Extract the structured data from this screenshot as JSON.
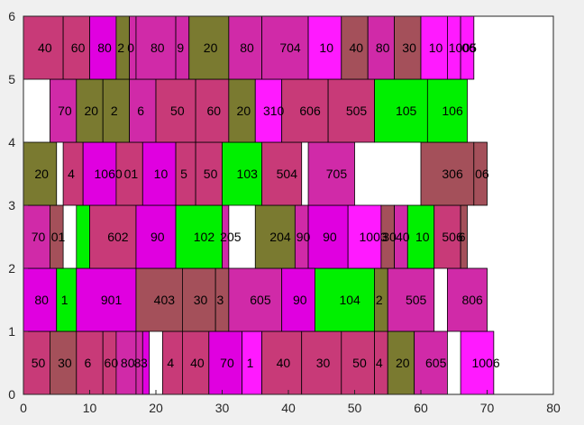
{
  "chart_data": {
    "type": "bar",
    "subtype": "packing-layout",
    "title": "",
    "xlabel": "",
    "ylabel": "",
    "xlim": [
      0,
      80
    ],
    "ylim": [
      0,
      6
    ],
    "xticks": [
      "0",
      "10",
      "20",
      "30",
      "40",
      "50",
      "60",
      "70",
      "80"
    ],
    "yticks": [
      "0",
      "1",
      "2",
      "3",
      "4",
      "5",
      "6"
    ],
    "grid": false,
    "plot_background": "#ffffff",
    "colors": {
      "magenta": "#e000e0",
      "violet": "#ff1aff",
      "orchid": "#d02aa8",
      "rose": "#c83a78",
      "brown": "#a4505a",
      "olive": "#7a7a30",
      "green": "#00f000"
    },
    "boxes": [
      {
        "label": "50",
        "x0": 0,
        "x1": 4,
        "y0": 0,
        "y1": 1,
        "color": "rose"
      },
      {
        "label": "30",
        "x0": 4,
        "x1": 8,
        "y0": 0,
        "y1": 1,
        "color": "brown"
      },
      {
        "label": "6",
        "x0": 8,
        "x1": 12,
        "y0": 0,
        "y1": 1,
        "color": "rose"
      },
      {
        "label": "60",
        "x0": 12,
        "x1": 14,
        "y0": 0,
        "y1": 1,
        "color": "rose"
      },
      {
        "label": "80",
        "x0": 14,
        "x1": 17,
        "y0": 0,
        "y1": 1,
        "color": "orchid"
      },
      {
        "label": "8",
        "x0": 17,
        "x1": 18,
        "y0": 0,
        "y1": 1,
        "color": "orchid"
      },
      {
        "label": "3",
        "x0": 18,
        "x1": 19,
        "y0": 0,
        "y1": 1,
        "color": "magenta"
      },
      {
        "label": "4",
        "x0": 21,
        "x1": 24,
        "y0": 0,
        "y1": 1,
        "color": "rose"
      },
      {
        "label": "40",
        "x0": 24,
        "x1": 28,
        "y0": 0,
        "y1": 1,
        "color": "rose"
      },
      {
        "label": "70",
        "x0": 28,
        "x1": 33,
        "y0": 0,
        "y1": 1,
        "color": "magenta"
      },
      {
        "label": "1",
        "x0": 33,
        "x1": 36,
        "y0": 0,
        "y1": 1,
        "color": "violet"
      },
      {
        "label": "40",
        "x0": 36,
        "x1": 42,
        "y0": 0,
        "y1": 1,
        "color": "rose"
      },
      {
        "label": "30",
        "x0": 42,
        "x1": 48,
        "y0": 0,
        "y1": 1,
        "color": "rose"
      },
      {
        "label": "50",
        "x0": 48,
        "x1": 53,
        "y0": 0,
        "y1": 1,
        "color": "rose"
      },
      {
        "label": "4",
        "x0": 53,
        "x1": 55,
        "y0": 0,
        "y1": 1,
        "color": "rose"
      },
      {
        "label": "20",
        "x0": 55,
        "x1": 59,
        "y0": 0,
        "y1": 1,
        "color": "olive"
      },
      {
        "label": "605",
        "x0": 59,
        "x1": 64,
        "y0": 0,
        "y1": 1,
        "color": "orchid"
      },
      {
        "label": "1006",
        "x0": 66,
        "x1": 71,
        "y0": 0,
        "y1": 1,
        "color": "violet"
      },
      {
        "label": "80",
        "x0": 0,
        "x1": 5,
        "y0": 1,
        "y1": 2,
        "color": "magenta"
      },
      {
        "label": "1",
        "x0": 5,
        "x1": 8,
        "y0": 1,
        "y1": 2,
        "color": "green"
      },
      {
        "label": "901",
        "x0": 8,
        "x1": 17,
        "y0": 1,
        "y1": 2,
        "color": "magenta"
      },
      {
        "label": "403",
        "x0": 17,
        "x1": 24,
        "y0": 1,
        "y1": 2,
        "color": "brown"
      },
      {
        "label": "30",
        "x0": 24,
        "x1": 29,
        "y0": 1,
        "y1": 2,
        "color": "brown"
      },
      {
        "label": "3",
        "x0": 29,
        "x1": 31,
        "y0": 1,
        "y1": 2,
        "color": "brown"
      },
      {
        "label": "605",
        "x0": 31,
        "x1": 39,
        "y0": 1,
        "y1": 2,
        "color": "orchid"
      },
      {
        "label": "90",
        "x0": 39,
        "x1": 44,
        "y0": 1,
        "y1": 2,
        "color": "magenta"
      },
      {
        "label": "104",
        "x0": 44,
        "x1": 53,
        "y0": 1,
        "y1": 2,
        "color": "green"
      },
      {
        "label": "2",
        "x0": 53,
        "x1": 55,
        "y0": 1,
        "y1": 2,
        "color": "olive"
      },
      {
        "label": "505",
        "x0": 55,
        "x1": 62,
        "y0": 1,
        "y1": 2,
        "color": "orchid"
      },
      {
        "label": "806",
        "x0": 64,
        "x1": 70,
        "y0": 1,
        "y1": 2,
        "color": "orchid"
      },
      {
        "label": "70",
        "x0": 0,
        "x1": 4,
        "y0": 2,
        "y1": 3,
        "color": "orchid"
      },
      {
        "label": "01",
        "x0": 4,
        "x1": 6,
        "y0": 2,
        "y1": 3,
        "color": "brown"
      },
      {
        "label": "",
        "x0": 8,
        "x1": 10,
        "y0": 2,
        "y1": 3,
        "color": "green"
      },
      {
        "label": "602",
        "x0": 10,
        "x1": 17,
        "y0": 2,
        "y1": 3,
        "color": "rose"
      },
      {
        "label": "90",
        "x0": 17,
        "x1": 23,
        "y0": 2,
        "y1": 3,
        "color": "magenta"
      },
      {
        "label": "102",
        "x0": 23,
        "x1": 30,
        "y0": 2,
        "y1": 3,
        "color": "green"
      },
      {
        "label": "205",
        "x0": 30,
        "x1": 31,
        "y0": 2,
        "y1": 3,
        "color": "orchid"
      },
      {
        "label": "204",
        "x0": 35,
        "x1": 41,
        "y0": 2,
        "y1": 3,
        "color": "olive"
      },
      {
        "label": "90",
        "x0": 41,
        "x1": 43,
        "y0": 2,
        "y1": 3,
        "color": "orchid"
      },
      {
        "label": "90",
        "x0": 43,
        "x1": 49,
        "y0": 2,
        "y1": 3,
        "color": "magenta"
      },
      {
        "label": "1003",
        "x0": 49,
        "x1": 54,
        "y0": 2,
        "y1": 3,
        "color": "violet"
      },
      {
        "label": "30",
        "x0": 54,
        "x1": 56,
        "y0": 2,
        "y1": 3,
        "color": "brown"
      },
      {
        "label": "40",
        "x0": 56,
        "x1": 58,
        "y0": 2,
        "y1": 3,
        "color": "orchid"
      },
      {
        "label": "10",
        "x0": 58,
        "x1": 62,
        "y0": 2,
        "y1": 3,
        "color": "green"
      },
      {
        "label": "506",
        "x0": 62,
        "x1": 66,
        "y0": 2,
        "y1": 3,
        "color": "rose"
      },
      {
        "label": "6",
        "x0": 66,
        "x1": 67,
        "y0": 2,
        "y1": 3,
        "color": "brown"
      },
      {
        "label": "20",
        "x0": 0,
        "x1": 5,
        "y0": 3,
        "y1": 4,
        "color": "olive"
      },
      {
        "label": "4",
        "x0": 6,
        "x1": 9,
        "y0": 3,
        "y1": 4,
        "color": "rose"
      },
      {
        "label": "1060",
        "x0": 9,
        "x1": 14,
        "y0": 3,
        "y1": 4,
        "color": "magenta"
      },
      {
        "label": "01",
        "x0": 14,
        "x1": 18,
        "y0": 3,
        "y1": 4,
        "color": "rose"
      },
      {
        "label": "10",
        "x0": 18,
        "x1": 23,
        "y0": 3,
        "y1": 4,
        "color": "magenta"
      },
      {
        "label": "5",
        "x0": 23,
        "x1": 26,
        "y0": 3,
        "y1": 4,
        "color": "rose"
      },
      {
        "label": "50",
        "x0": 26,
        "x1": 30,
        "y0": 3,
        "y1": 4,
        "color": "rose"
      },
      {
        "label": "103",
        "x0": 30,
        "x1": 36,
        "y0": 3,
        "y1": 4,
        "color": "green"
      },
      {
        "label": "504",
        "x0": 36,
        "x1": 42,
        "y0": 3,
        "y1": 4,
        "color": "rose"
      },
      {
        "label": "705",
        "x0": 43,
        "x1": 50,
        "y0": 3,
        "y1": 4,
        "color": "orchid"
      },
      {
        "label": "306",
        "x0": 60,
        "x1": 68,
        "y0": 3,
        "y1": 4,
        "color": "brown"
      },
      {
        "label": "06",
        "x0": 68,
        "x1": 70,
        "y0": 3,
        "y1": 4,
        "color": "brown"
      },
      {
        "label": "70",
        "x0": 4,
        "x1": 8,
        "y0": 4,
        "y1": 5,
        "color": "orchid"
      },
      {
        "label": "20",
        "x0": 8,
        "x1": 12,
        "y0": 4,
        "y1": 5,
        "color": "olive"
      },
      {
        "label": "2",
        "x0": 12,
        "x1": 16,
        "y0": 4,
        "y1": 5,
        "color": "olive"
      },
      {
        "label": "6",
        "x0": 16,
        "x1": 20,
        "y0": 4,
        "y1": 5,
        "color": "orchid"
      },
      {
        "label": "50",
        "x0": 20,
        "x1": 26,
        "y0": 4,
        "y1": 5,
        "color": "rose"
      },
      {
        "label": "60",
        "x0": 26,
        "x1": 31,
        "y0": 4,
        "y1": 5,
        "color": "rose"
      },
      {
        "label": "20",
        "x0": 31,
        "x1": 35,
        "y0": 4,
        "y1": 5,
        "color": "olive"
      },
      {
        "label": "310",
        "x0": 35,
        "x1": 39,
        "y0": 4,
        "y1": 5,
        "color": "violet"
      },
      {
        "label": "606",
        "x0": 39,
        "x1": 46,
        "y0": 4,
        "y1": 5,
        "color": "rose"
      },
      {
        "label": "505",
        "x0": 46,
        "x1": 53,
        "y0": 4,
        "y1": 5,
        "color": "rose"
      },
      {
        "label": "105",
        "x0": 53,
        "x1": 61,
        "y0": 4,
        "y1": 5,
        "color": "green"
      },
      {
        "label": "106",
        "x0": 61,
        "x1": 67,
        "y0": 4,
        "y1": 5,
        "color": "green"
      },
      {
        "label": "40",
        "x0": 0,
        "x1": 6,
        "y0": 5,
        "y1": 6,
        "color": "rose"
      },
      {
        "label": "60",
        "x0": 6,
        "x1": 10,
        "y0": 5,
        "y1": 6,
        "color": "rose"
      },
      {
        "label": "80",
        "x0": 10,
        "x1": 14,
        "y0": 5,
        "y1": 6,
        "color": "magenta"
      },
      {
        "label": "2",
        "x0": 14,
        "x1": 16,
        "y0": 5,
        "y1": 6,
        "color": "olive"
      },
      {
        "label": "0",
        "x0": 16,
        "x1": 17,
        "y0": 5,
        "y1": 6,
        "color": "orchid"
      },
      {
        "label": "80",
        "x0": 17,
        "x1": 23,
        "y0": 5,
        "y1": 6,
        "color": "orchid"
      },
      {
        "label": "9",
        "x0": 23,
        "x1": 25,
        "y0": 5,
        "y1": 6,
        "color": "orchid"
      },
      {
        "label": "20",
        "x0": 25,
        "x1": 31,
        "y0": 5,
        "y1": 6,
        "color": "olive"
      },
      {
        "label": "80",
        "x0": 31,
        "x1": 36,
        "y0": 5,
        "y1": 6,
        "color": "orchid"
      },
      {
        "label": "704",
        "x0": 36,
        "x1": 43,
        "y0": 5,
        "y1": 6,
        "color": "orchid"
      },
      {
        "label": "10",
        "x0": 43,
        "x1": 48,
        "y0": 5,
        "y1": 6,
        "color": "violet"
      },
      {
        "label": "40",
        "x0": 48,
        "x1": 52,
        "y0": 5,
        "y1": 6,
        "color": "brown"
      },
      {
        "label": "80",
        "x0": 52,
        "x1": 56,
        "y0": 5,
        "y1": 6,
        "color": "orchid"
      },
      {
        "label": "30",
        "x0": 56,
        "x1": 60,
        "y0": 5,
        "y1": 6,
        "color": "brown"
      },
      {
        "label": "10",
        "x0": 60,
        "x1": 64,
        "y0": 5,
        "y1": 6,
        "color": "violet"
      },
      {
        "label": "1005",
        "x0": 64,
        "x1": 66,
        "y0": 5,
        "y1": 6,
        "color": "violet"
      },
      {
        "label": "06",
        "x0": 66,
        "x1": 68,
        "y0": 5,
        "y1": 6,
        "color": "violet"
      }
    ]
  }
}
